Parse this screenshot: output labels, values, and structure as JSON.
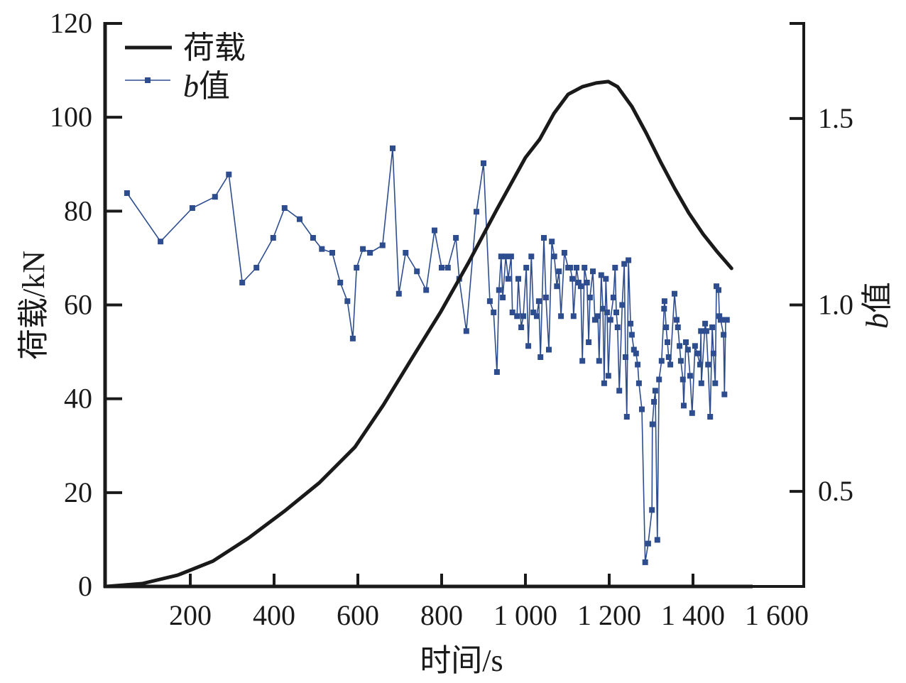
{
  "chart_data": {
    "type": "line",
    "title": "",
    "xlabel": "时间/s",
    "ylabel": "荷载/kN",
    "y2label_italic": "b",
    "y2label_rest": "值",
    "xlim": [
      0,
      1660
    ],
    "ylim": [
      0,
      120
    ],
    "y2lim": [
      0.245,
      1.755
    ],
    "grid": false,
    "legend_position": "top-left",
    "x_ticks": [
      {
        "value": 200,
        "label": "200"
      },
      {
        "value": 400,
        "label": "400"
      },
      {
        "value": 600,
        "label": "600"
      },
      {
        "value": 800,
        "label": "800"
      },
      {
        "value": 1000,
        "label": "1 000"
      },
      {
        "value": 1200,
        "label": "1 200"
      },
      {
        "value": 1400,
        "label": "1 400"
      },
      {
        "value": 1600,
        "label": "1 600"
      }
    ],
    "y_ticks": [
      {
        "value": 0,
        "label": "0"
      },
      {
        "value": 20,
        "label": "20"
      },
      {
        "value": 40,
        "label": "40"
      },
      {
        "value": 60,
        "label": "60"
      },
      {
        "value": 80,
        "label": "80"
      },
      {
        "value": 100,
        "label": "100"
      },
      {
        "value": 120,
        "label": "120"
      }
    ],
    "y2_ticks": [
      {
        "value": 0.5,
        "label": "0.5"
      },
      {
        "value": 1.0,
        "label": "1.0"
      },
      {
        "value": 1.5,
        "label": "1.5"
      }
    ],
    "series": [
      {
        "name": "荷载",
        "legend_label": "荷载",
        "axis": "left",
        "color": "#1a1a1a",
        "marker": "none",
        "x": [
          0,
          85,
          170,
          254,
          339,
          424,
          508,
          593,
          661,
          729,
          797,
          864,
          932,
          1000,
          1034,
          1068,
          1102,
          1136,
          1169,
          1198,
          1220,
          1254,
          1288,
          1322,
          1356,
          1390,
          1424,
          1458,
          1492
        ],
        "y": [
          0,
          0.6,
          2.4,
          5.4,
          10.3,
          16.0,
          22.1,
          29.7,
          38.7,
          48.6,
          58.4,
          69.0,
          80.4,
          91.4,
          95.3,
          100.8,
          104.9,
          106.5,
          107.3,
          107.6,
          106.5,
          102.3,
          96.7,
          90.6,
          84.9,
          79.6,
          75.1,
          71.3,
          67.8
        ]
      },
      {
        "name": "b值",
        "legend_italic": "b",
        "legend_rest": "值",
        "axis": "right",
        "color": "#2e4d8f",
        "marker": "square",
        "x": [
          49,
          129,
          205,
          259,
          292,
          324,
          358,
          398,
          425,
          461,
          493,
          514,
          539,
          558,
          575,
          588,
          597,
          612,
          629,
          659,
          683,
          698,
          714,
          741,
          763,
          783,
          800,
          815,
          834,
          842,
          859,
          883,
          900,
          915,
          924,
          932,
          937,
          942,
          946,
          953,
          959,
          966,
          969,
          980,
          983,
          990,
          995,
          1002,
          1007,
          1014,
          1019,
          1027,
          1032,
          1036,
          1044,
          1049,
          1056,
          1063,
          1069,
          1075,
          1080,
          1085,
          1093,
          1102,
          1107,
          1112,
          1115,
          1122,
          1127,
          1132,
          1136,
          1141,
          1147,
          1151,
          1154,
          1161,
          1166,
          1173,
          1176,
          1181,
          1185,
          1188,
          1192,
          1195,
          1198,
          1203,
          1210,
          1214,
          1217,
          1220,
          1224,
          1231,
          1236,
          1239,
          1242,
          1246,
          1251,
          1254,
          1259,
          1264,
          1268,
          1271,
          1278,
          1286,
          1293,
          1302,
          1303,
          1307,
          1310,
          1315,
          1319,
          1325,
          1331,
          1332,
          1336,
          1339,
          1342,
          1346,
          1356,
          1361,
          1364,
          1368,
          1371,
          1376,
          1378,
          1383,
          1388,
          1393,
          1398,
          1405,
          1410,
          1417,
          1419,
          1420,
          1429,
          1432,
          1436,
          1441,
          1446,
          1449,
          1453,
          1456,
          1461,
          1463,
          1466,
          1473,
          1475,
          1478,
          1481
        ],
        "y": [
          1.3,
          1.17,
          1.26,
          1.29,
          1.35,
          1.06,
          1.1,
          1.18,
          1.26,
          1.23,
          1.18,
          1.15,
          1.14,
          1.06,
          1.01,
          0.91,
          1.1,
          1.15,
          1.14,
          1.16,
          1.42,
          1.03,
          1.14,
          1.09,
          1.04,
          1.2,
          1.1,
          1.1,
          1.18,
          1.07,
          0.93,
          1.25,
          1.38,
          1.01,
          0.98,
          0.82,
          1.04,
          1.13,
          1.02,
          1.13,
          1.07,
          1.13,
          0.98,
          0.97,
          1.07,
          0.94,
          0.97,
          1.1,
          0.89,
          1.13,
          0.98,
          0.97,
          1.01,
          0.86,
          1.18,
          1.02,
          0.88,
          1.17,
          1.13,
          1.05,
          1.09,
          0.97,
          1.14,
          1.1,
          1.1,
          1.07,
          0.97,
          1.1,
          1.06,
          1.05,
          0.85,
          1.1,
          1.06,
          0.9,
          1.02,
          1.09,
          0.96,
          0.97,
          0.85,
          1.08,
          0.99,
          0.79,
          1.07,
          0.98,
          0.81,
          0.96,
          1.02,
          1.1,
          0.98,
          0.94,
          0.77,
          1.0,
          1.11,
          0.86,
          0.7,
          1.12,
          0.95,
          0.92,
          0.88,
          0.87,
          0.84,
          0.79,
          0.72,
          0.31,
          0.36,
          0.45,
          0.68,
          0.74,
          0.77,
          0.37,
          0.8,
          0.85,
          0.99,
          1.01,
          0.94,
          0.9,
          0.86,
          0.84,
          1.03,
          0.96,
          0.94,
          0.89,
          0.85,
          0.8,
          0.73,
          0.9,
          0.88,
          0.81,
          0.71,
          0.89,
          0.87,
          0.84,
          0.93,
          0.79,
          0.95,
          0.93,
          0.84,
          0.7,
          0.94,
          0.87,
          0.79,
          1.05,
          1.04,
          0.97,
          0.96,
          0.92,
          0.76,
          0.96,
          0.96
        ]
      }
    ]
  }
}
